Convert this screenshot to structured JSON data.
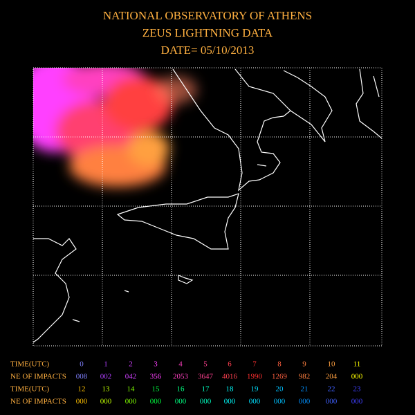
{
  "header": {
    "lines": [
      "NATIONAL OBSERVATORY OF ATHENS",
      "ZEUS LIGHTNING DATA",
      "DATE= 05/10/2013"
    ]
  },
  "table": {
    "rows": [
      [
        "TIME(UTC)",
        "0",
        "1",
        "2",
        "3",
        "4",
        "5",
        "6",
        "7",
        "8",
        "9",
        "10",
        "11"
      ],
      [
        "NE OF IMPACTS",
        "008",
        "002",
        "042",
        "356",
        "2053",
        "3647",
        "4016",
        "1990",
        "1269",
        "982",
        "204",
        "000"
      ],
      [
        "TIME(UTC)",
        "12",
        "13",
        "14",
        "15",
        "16",
        "17",
        "18",
        "19",
        "20",
        "21",
        "22",
        "23"
      ],
      [
        "NE OF IMPACTS",
        "000",
        "000",
        "000",
        "000",
        "000",
        "000",
        "000",
        "000",
        "000",
        "000",
        "000",
        "000"
      ]
    ]
  }
}
